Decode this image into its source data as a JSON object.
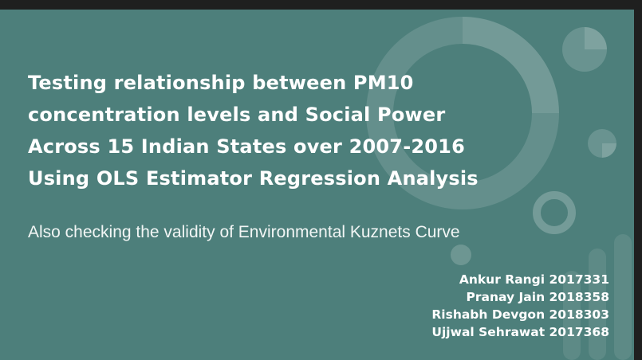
{
  "slide": {
    "title_lines": [
      "Testing relationship between PM10",
      "concentration levels and Social Power",
      "Across 15 Indian States over 2007-2016",
      "Using OLS Estimator Regression Analysis"
    ],
    "subtitle": "Also checking the validity of Environmental Kuznets Curve",
    "authors": [
      "Ankur Rangi 2017331",
      "Pranay Jain 2018358",
      "Rishabh Devgon 2018303",
      "Ujjwal Sehrawat 2017368"
    ]
  },
  "colors": {
    "background": "#4d7f7b",
    "text": "#ffffff",
    "decoration": "#6f9d99"
  },
  "decoration": {
    "icon": "circle-chart-shapes"
  }
}
